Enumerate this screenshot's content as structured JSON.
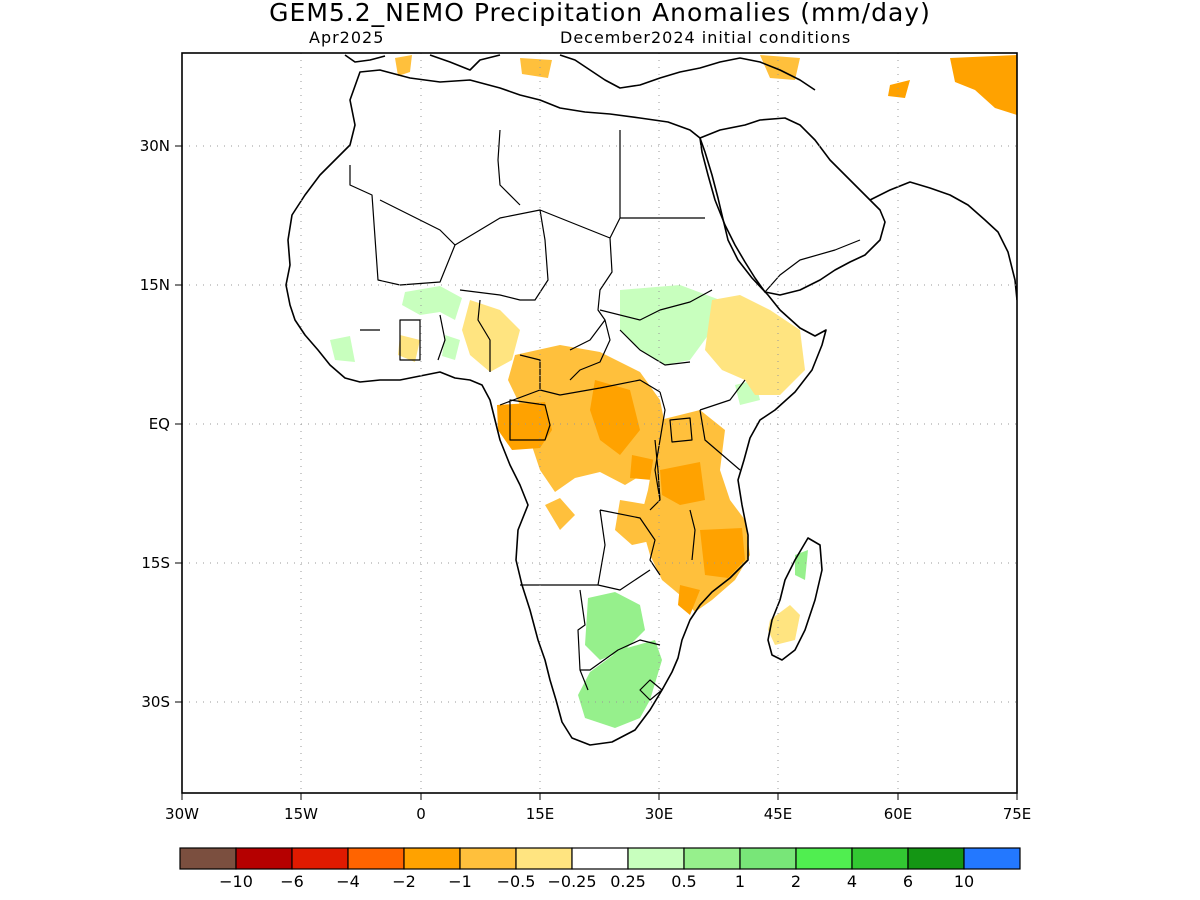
{
  "title": "GEM5.2_NEMO Precipitation Anomalies (mm/day)",
  "forecast_month": "Apr2025",
  "initial_conditions": "December2024 initial conditions",
  "colors": {
    "frame": "#000000",
    "gridline": "#999999",
    "coastline": "#000000"
  },
  "axes": {
    "x_ticks": [
      "30W",
      "15W",
      "0",
      "15E",
      "30E",
      "45E",
      "60E",
      "75E"
    ],
    "y_ticks": [
      "30N",
      "15N",
      "EQ",
      "15S",
      "30S"
    ],
    "lon_range": [
      -30,
      75
    ],
    "lat_range": [
      -40,
      40
    ]
  },
  "colorbar": {
    "bins": [
      {
        "color": "#7b4f3f"
      },
      {
        "color": "#b50000"
      },
      {
        "color": "#e01a00"
      },
      {
        "color": "#ff6400"
      },
      {
        "color": "#ffa200"
      },
      {
        "color": "#ffc03c"
      },
      {
        "color": "#ffe480"
      },
      {
        "color": "#ffffff"
      },
      {
        "color": "#c8ffbe"
      },
      {
        "color": "#96f08c"
      },
      {
        "color": "#78e678"
      },
      {
        "color": "#50ee50"
      },
      {
        "color": "#32c832"
      },
      {
        "color": "#149614"
      },
      {
        "color": "#2378ff"
      }
    ],
    "labels": [
      "−10",
      "−6",
      "−4",
      "−2",
      "−1",
      "−0.5",
      "−0.25",
      "0.25",
      "0.5",
      "1",
      "2",
      "4",
      "6",
      "10"
    ]
  },
  "anomaly_regions": [
    {
      "name": "north-africa-orange",
      "color": "#ffc03c"
    },
    {
      "name": "iran-orange",
      "color": "#ffa200"
    },
    {
      "name": "west-sahel-green",
      "color": "#c8ffbe"
    },
    {
      "name": "nigeria-yellow",
      "color": "#ffe480"
    },
    {
      "name": "central-africa-orange",
      "color": "#ffc03c"
    },
    {
      "name": "gabon-orange",
      "color": "#ffa200"
    },
    {
      "name": "sudan-green",
      "color": "#c8ffbe"
    },
    {
      "name": "ethiopia-yellow",
      "color": "#ffe480"
    },
    {
      "name": "east-africa-orange",
      "color": "#ffc03c"
    },
    {
      "name": "mozambique-orange",
      "color": "#ffa200"
    },
    {
      "name": "southern-africa-green",
      "color": "#96f08c"
    },
    {
      "name": "madagascar-yellow",
      "color": "#ffe480"
    }
  ]
}
